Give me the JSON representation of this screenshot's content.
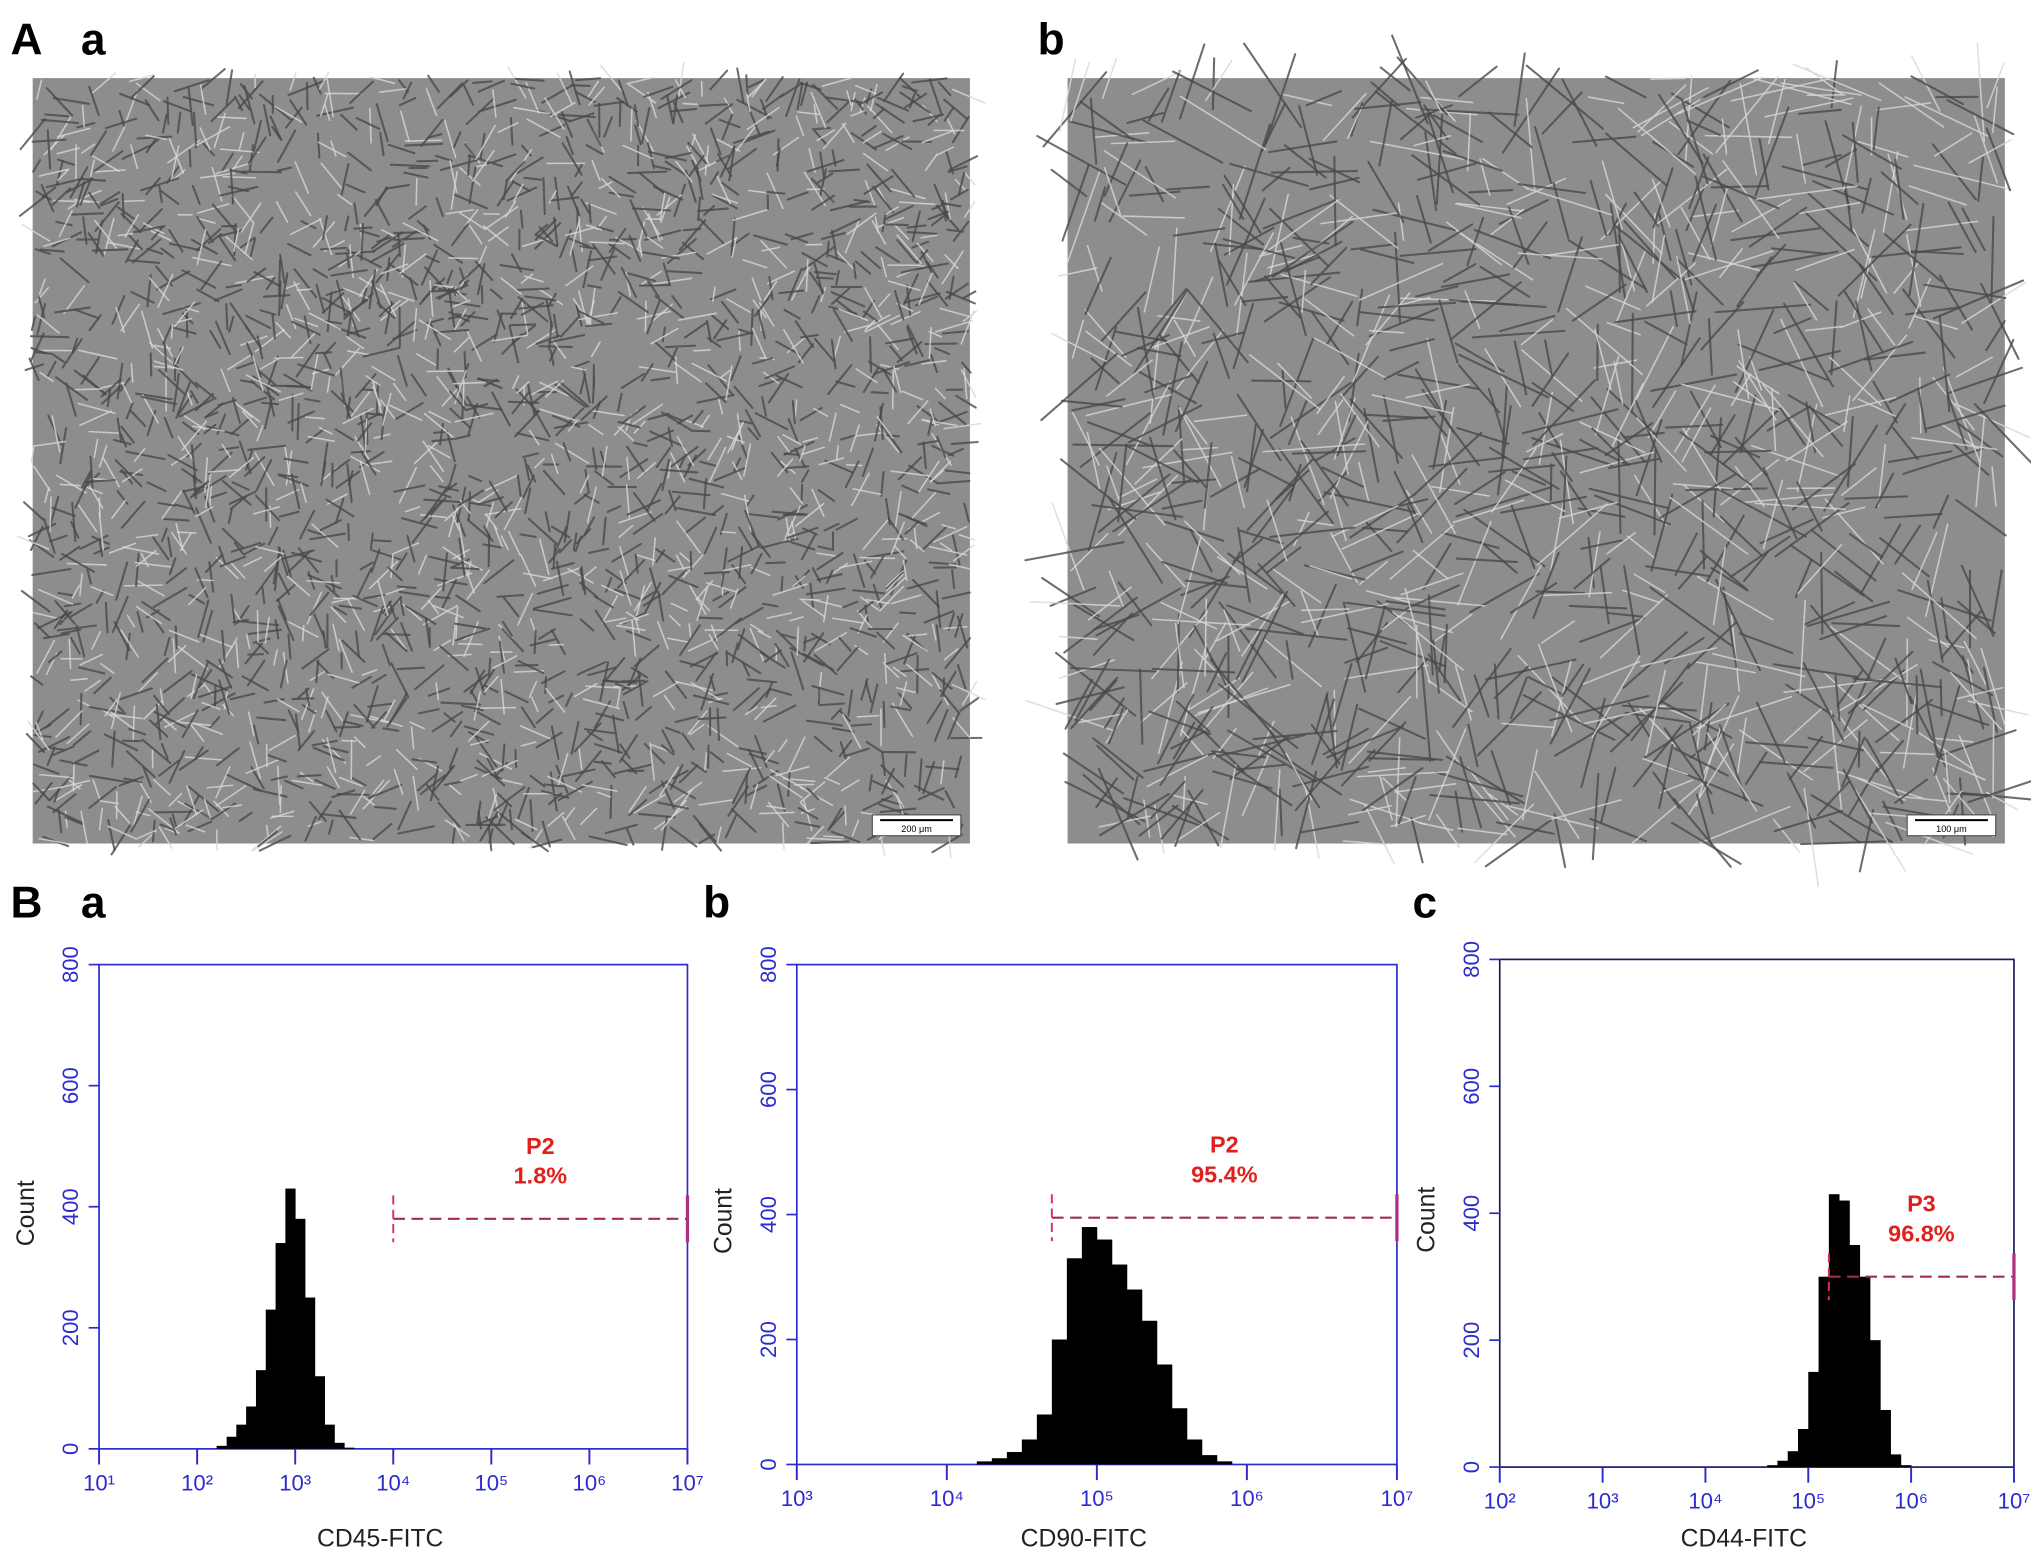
{
  "figure": {
    "panel_A": "A",
    "panel_B": "B"
  },
  "images": [
    {
      "panel": "a",
      "scale_bar": "200 μm"
    },
    {
      "panel": "b",
      "scale_bar": "100 μm"
    }
  ],
  "chart_data": [
    {
      "type": "histogram",
      "panel": "a",
      "x_label": "CD45-FITC",
      "y_label": "Count",
      "xscale": "log",
      "color": "#000000",
      "axis_color": "#2b2bd0",
      "xlim": [
        10,
        10000000
      ],
      "xticks": [
        {
          "value": 10,
          "label": "10¹"
        },
        {
          "value": 100,
          "label": "10²"
        },
        {
          "value": 1000,
          "label": "10³"
        },
        {
          "value": 10000,
          "label": "10⁴"
        },
        {
          "value": 100000,
          "label": "10⁵"
        },
        {
          "value": 1000000,
          "label": "10⁶"
        },
        {
          "value": 10000000,
          "label": "10⁷"
        }
      ],
      "ylim": [
        0,
        800
      ],
      "yticks": [
        0,
        200,
        400,
        600,
        800
      ],
      "bins": [
        158,
        200,
        251,
        316,
        398,
        501,
        631,
        794,
        1000,
        1259,
        1585,
        1995,
        2512,
        3162,
        3981
      ],
      "counts": [
        5,
        20,
        40,
        70,
        130,
        230,
        340,
        430,
        380,
        250,
        120,
        40,
        10,
        2
      ],
      "gate": {
        "name": "P2",
        "label": "1.8%",
        "range": [
          10000,
          10000000
        ],
        "level": 380
      }
    },
    {
      "type": "histogram",
      "panel": "b",
      "x_label": "CD90-FITC",
      "y_label": "Count",
      "xscale": "log",
      "color": "#000000",
      "axis_color": "#2b2bd0",
      "xlim": [
        1000,
        10000000
      ],
      "xticks": [
        {
          "value": 1000,
          "label": "10³"
        },
        {
          "value": 10000,
          "label": "10⁴"
        },
        {
          "value": 100000,
          "label": "10⁵"
        },
        {
          "value": 1000000,
          "label": "10⁶"
        },
        {
          "value": 10000000,
          "label": "10⁷"
        }
      ],
      "ylim": [
        0,
        800
      ],
      "yticks": [
        0,
        200,
        400,
        600,
        800
      ],
      "bins": [
        15849,
        19953,
        25119,
        31623,
        39811,
        50119,
        63096,
        79433,
        100000,
        125893,
        158489,
        199526,
        251189,
        316228,
        398107,
        501187,
        630957,
        794328
      ],
      "counts": [
        5,
        10,
        20,
        40,
        80,
        200,
        330,
        380,
        360,
        320,
        280,
        230,
        160,
        90,
        40,
        15,
        5
      ],
      "gate": {
        "name": "P2",
        "label": "95.4%",
        "range": [
          50119,
          10000000
        ],
        "level": 395
      }
    },
    {
      "type": "histogram",
      "panel": "c",
      "x_label": "CD44-FITC",
      "y_label": "Count",
      "xscale": "log",
      "color": "#000000",
      "axis_color": "#2b2bd0",
      "xlim": [
        100,
        10000000
      ],
      "xticks": [
        {
          "value": 100,
          "label": "10²"
        },
        {
          "value": 1000,
          "label": "10³"
        },
        {
          "value": 10000,
          "label": "10⁴"
        },
        {
          "value": 100000,
          "label": "10⁵"
        },
        {
          "value": 1000000,
          "label": "10⁶"
        },
        {
          "value": 10000000,
          "label": "10⁷"
        }
      ],
      "ylim": [
        0,
        800
      ],
      "yticks": [
        0,
        200,
        400,
        600,
        800
      ],
      "bins": [
        39811,
        50119,
        63096,
        79433,
        100000,
        125893,
        158489,
        199526,
        251189,
        316228,
        398107,
        501187,
        630957,
        794328,
        1000000
      ],
      "counts": [
        3,
        10,
        25,
        60,
        150,
        300,
        430,
        420,
        350,
        300,
        200,
        90,
        20,
        3
      ],
      "gate": {
        "name": "P3",
        "label": "96.8%",
        "range": [
          158489,
          10000000
        ],
        "level": 300
      }
    }
  ]
}
